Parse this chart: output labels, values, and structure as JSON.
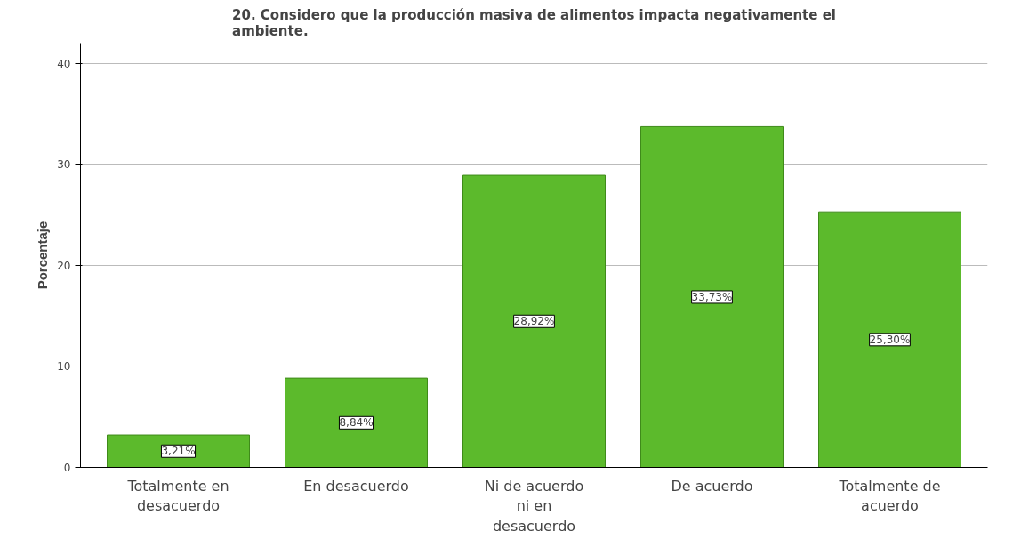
{
  "chart_data": {
    "type": "bar",
    "title": "20. Considero que la producción masiva de alimentos impacta negativamente el ambiente.",
    "ylabel": "Porcentaje",
    "categories": [
      "Totalmente en desacuerdo",
      "En desacuerdo",
      "Ni de acuerdo ni en desacuerdo",
      "De acuerdo",
      "Totalmente de acuerdo"
    ],
    "values": [
      3.21,
      8.84,
      28.92,
      33.73,
      25.3
    ],
    "value_labels": [
      "3,21%",
      "8,84%",
      "28,92%",
      "33,73%",
      "25,30%"
    ],
    "color": "#5cba2c",
    "ylim": [
      0,
      42
    ],
    "yticks": [
      0,
      10,
      20,
      30,
      40
    ],
    "grid": "y"
  }
}
